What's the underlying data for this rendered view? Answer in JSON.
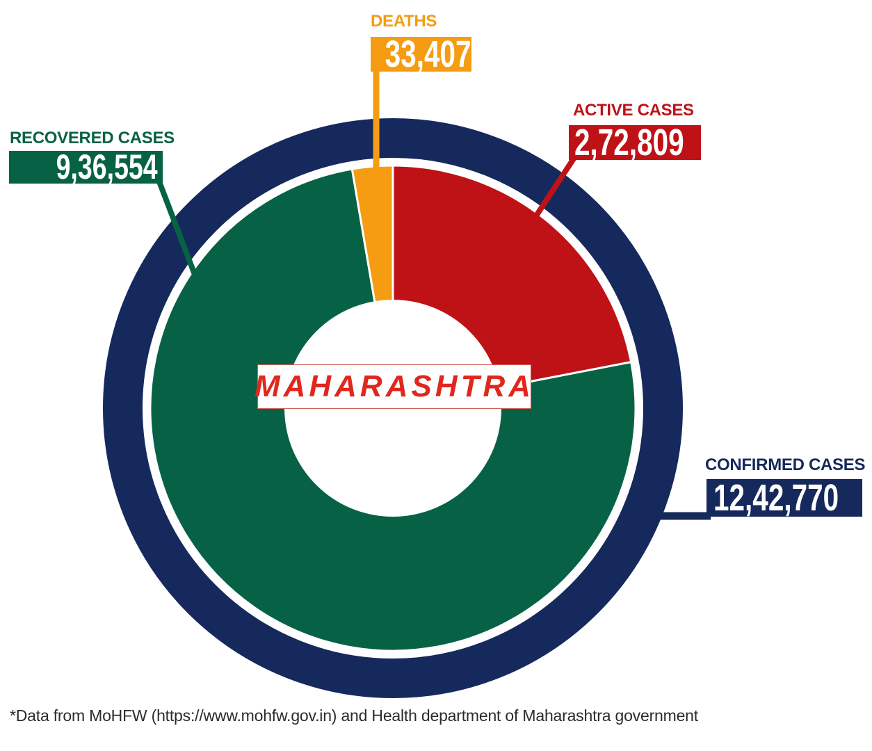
{
  "center_label": {
    "text": "MAHARASHTRA"
  },
  "labels": {
    "deaths": {
      "heading": "DEATHS",
      "value": "33,407"
    },
    "active": {
      "heading": "ACTIVE CASES",
      "value": "2,72,809"
    },
    "recovered": {
      "heading": "RECOVERED CASES",
      "value": "9,36,554"
    },
    "confirmed": {
      "heading": "CONFIRMED CASES",
      "value": "12,42,770"
    }
  },
  "footer": {
    "text": "*Data from MoHFW (https://www.mohfw.gov.in) and Health department of Maharashtra government"
  },
  "colors": {
    "navy": "#16295c",
    "red": "#bf1217",
    "green": "#076245",
    "orange": "#f59c12",
    "maha_red": "#e0271e",
    "white": "#ffffff"
  },
  "chart_data": {
    "type": "pie",
    "title": "MAHARASHTRA",
    "subtitle_note": "Donut chart of COVID-19 cases; outer ring represents confirmed total",
    "legend_position": "callout-labels",
    "start_angle_deg": 0,
    "direction": "clockwise",
    "slices": [
      {
        "label": "Active cases",
        "value": 272809,
        "display": "2,72,809",
        "percent": 21.95,
        "color": "#bf1217"
      },
      {
        "label": "Recovered cases",
        "value": 936554,
        "display": "9,36,554",
        "percent": 75.36,
        "color": "#076245"
      },
      {
        "label": "Deaths",
        "value": 33407,
        "display": "33,407",
        "percent": 2.69,
        "color": "#f59c12"
      }
    ],
    "outer_ring": {
      "label": "Confirmed cases",
      "value": 1242770,
      "display": "12,42,770",
      "color": "#16295c"
    }
  }
}
